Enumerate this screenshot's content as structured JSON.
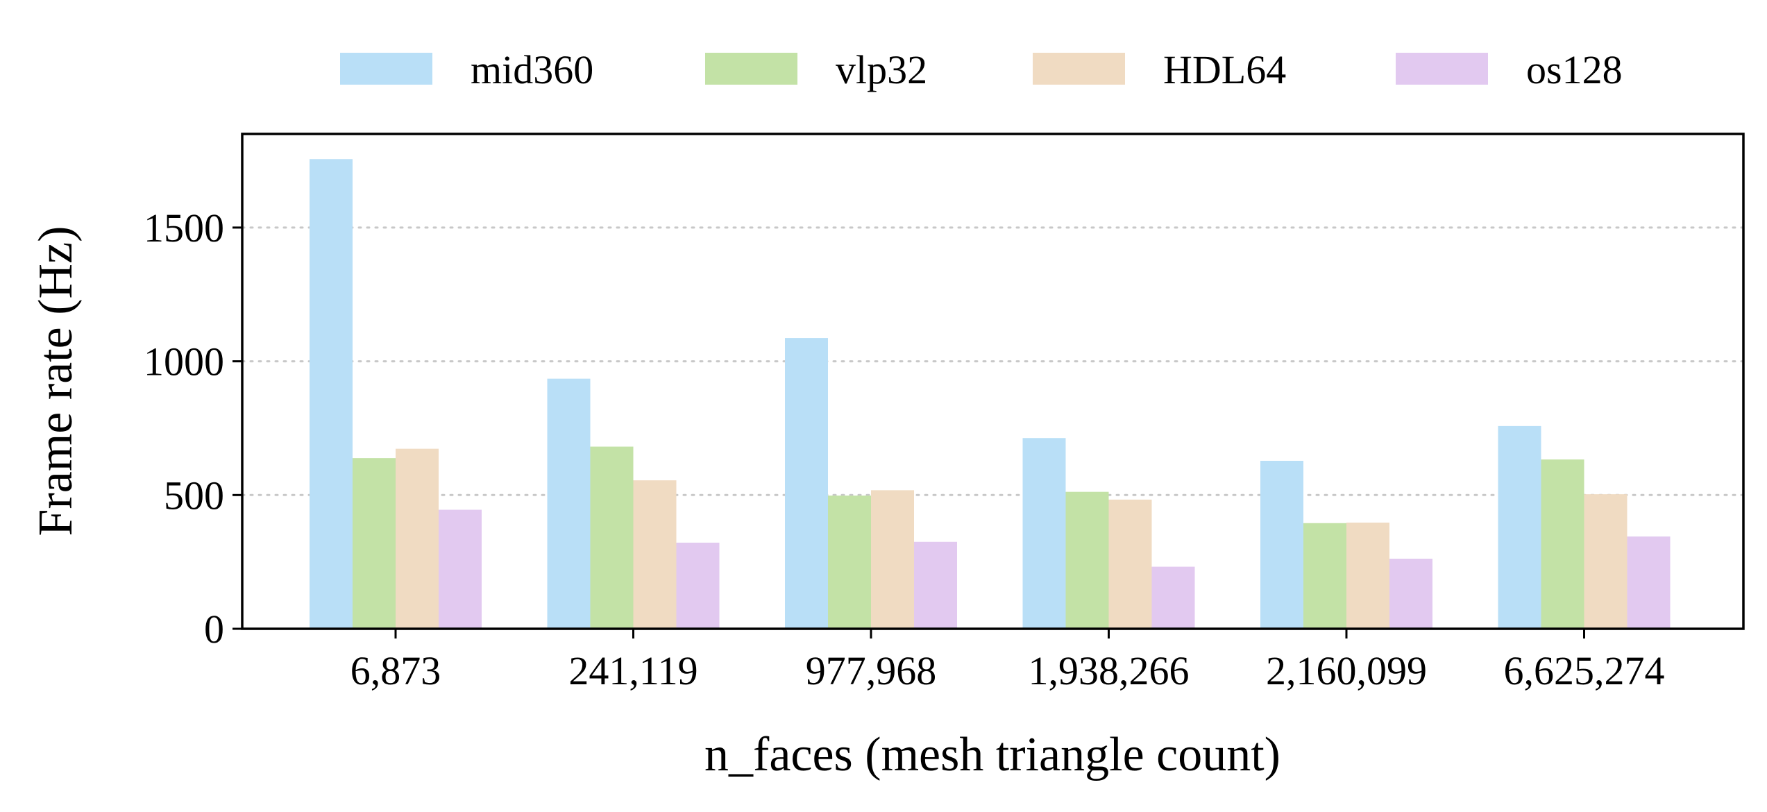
{
  "chart_data": {
    "type": "bar",
    "title": "",
    "xlabel": "n_faces (mesh triangle count)",
    "ylabel": "Frame rate (Hz)",
    "categories": [
      "6,873",
      "241,119",
      "977,968",
      "1,938,266",
      "2,160,099",
      "6,625,274"
    ],
    "series": [
      {
        "name": "mid360",
        "color": "#b9dff7",
        "values": [
          1756,
          935,
          1087,
          713,
          628,
          758
        ]
      },
      {
        "name": "vlp32",
        "color": "#c3e2a6",
        "values": [
          638,
          681,
          498,
          512,
          395,
          633
        ]
      },
      {
        "name": "HDL64",
        "color": "#f0dbc2",
        "values": [
          673,
          555,
          518,
          483,
          397,
          503
        ]
      },
      {
        "name": "os128",
        "color": "#e2c9f0",
        "values": [
          445,
          322,
          325,
          232,
          262,
          345
        ]
      }
    ],
    "ylim": [
      0,
      1850
    ],
    "yticks": [
      0,
      500,
      1000,
      1500
    ],
    "grid": {
      "y": true,
      "style": "dotted"
    },
    "legend_position": "top-center"
  }
}
